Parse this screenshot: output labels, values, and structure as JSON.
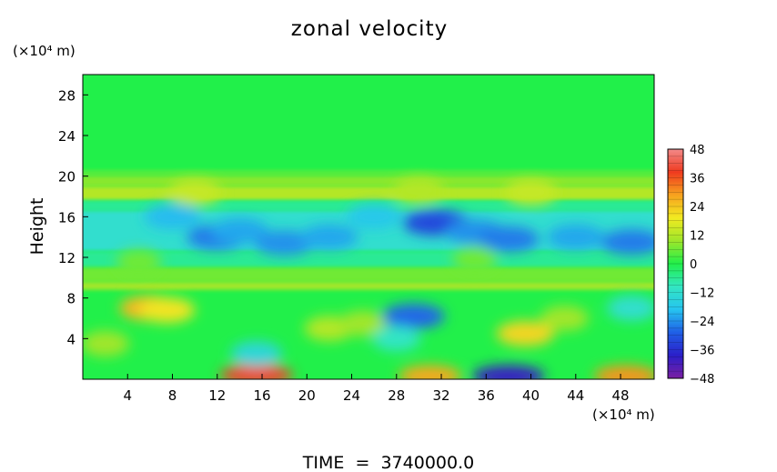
{
  "chart_data": {
    "type": "heatmap",
    "title": "zonal velocity",
    "xlabel": "",
    "ylabel": "Height",
    "x_unit": "(×10⁴ m)",
    "y_unit": "(×10⁴ m)",
    "footer": "TIME  =  3740000.0",
    "xlim": [
      0,
      51
    ],
    "ylim": [
      0,
      30
    ],
    "x_ticks": [
      4,
      8,
      12,
      16,
      20,
      24,
      28,
      32,
      36,
      40,
      44,
      48
    ],
    "y_ticks": [
      4,
      8,
      12,
      16,
      20,
      24,
      28
    ],
    "colorbar": {
      "ticks": [
        48,
        36,
        24,
        12,
        0,
        -12,
        -24,
        -36,
        -48
      ],
      "min": -48,
      "max": 48,
      "colors": [
        "#7a1fa2",
        "#2b1fc9",
        "#1f5fe6",
        "#26c4f0",
        "#33e6c2",
        "#21f04a",
        "#9ee62a",
        "#f2ea21",
        "#f7a21f",
        "#ef3a1f",
        "#f28a8a"
      ]
    },
    "features": [
      {
        "x": 6,
        "y": 7,
        "value": 26
      },
      {
        "x": 7.5,
        "y": 6.8,
        "value": 20
      },
      {
        "x": 2,
        "y": 3.5,
        "value": 10
      },
      {
        "x": 15.5,
        "y": 0.4,
        "value": 40
      },
      {
        "x": 15.5,
        "y": 2.5,
        "value": -14
      },
      {
        "x": 22,
        "y": 5,
        "value": 12
      },
      {
        "x": 25,
        "y": 5.5,
        "value": 10
      },
      {
        "x": 29.5,
        "y": 6.2,
        "value": -28
      },
      {
        "x": 31,
        "y": 0.3,
        "value": 28
      },
      {
        "x": 28,
        "y": 4,
        "value": -10
      },
      {
        "x": 38,
        "y": 0.3,
        "value": -40
      },
      {
        "x": 39.5,
        "y": 4.5,
        "value": 22
      },
      {
        "x": 43,
        "y": 6,
        "value": 10
      },
      {
        "x": 48.5,
        "y": 0.3,
        "value": 30
      },
      {
        "x": 49,
        "y": 7,
        "value": -12
      },
      {
        "x": 12,
        "y": 14,
        "value": -26
      },
      {
        "x": 14,
        "y": 14.6,
        "value": -22
      },
      {
        "x": 18,
        "y": 13.4,
        "value": -24
      },
      {
        "x": 22,
        "y": 14,
        "value": -22
      },
      {
        "x": 31.5,
        "y": 15.4,
        "value": -32
      },
      {
        "x": 35,
        "y": 14.5,
        "value": -24
      },
      {
        "x": 38,
        "y": 13.8,
        "value": -26
      },
      {
        "x": 44,
        "y": 14,
        "value": -22
      },
      {
        "x": 49,
        "y": 13.5,
        "value": -26
      },
      {
        "x": 8,
        "y": 16,
        "value": -20
      },
      {
        "x": 26,
        "y": 16,
        "value": -18
      },
      {
        "x": 10,
        "y": 18.4,
        "value": 14
      },
      {
        "x": 30,
        "y": 18.6,
        "value": 12
      },
      {
        "x": 40,
        "y": 18.4,
        "value": 14
      },
      {
        "x": 5,
        "y": 11.5,
        "value": 6
      },
      {
        "x": 35,
        "y": 11.8,
        "value": 6
      }
    ]
  }
}
